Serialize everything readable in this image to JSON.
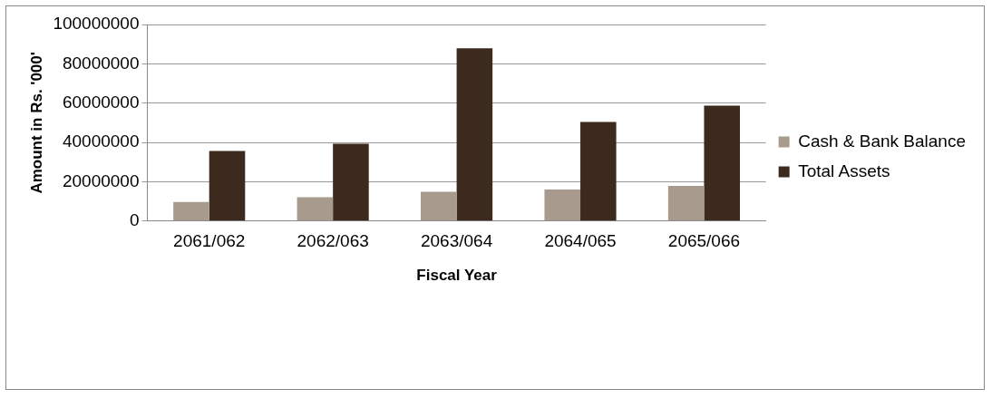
{
  "chart_data": {
    "type": "bar",
    "xlabel": "Fiscal Year",
    "ylabel": "Amount in Rs. '000'",
    "categories": [
      "2061/062",
      "2062/063",
      "2063/064",
      "2064/065",
      "2065/066"
    ],
    "series": [
      {
        "name": "Cash & Bank Balance",
        "color": "#a89a8c",
        "values": [
          9700000,
          12100000,
          14900000,
          16100000,
          17900000
        ]
      },
      {
        "name": "Total Assets",
        "color": "#3d2a1e",
        "values": [
          35700000,
          39300000,
          87900000,
          50400000,
          58700000
        ]
      }
    ],
    "ylim": [
      0,
      100000000
    ],
    "yticks": [
      0,
      20000000,
      40000000,
      60000000,
      80000000,
      100000000
    ],
    "grid": "y",
    "legend": "right"
  }
}
